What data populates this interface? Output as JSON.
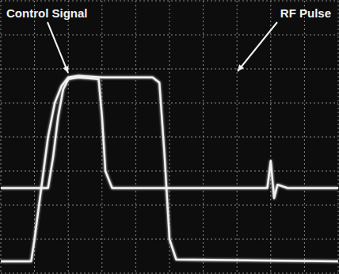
{
  "chart_data": {
    "type": "line",
    "xlim": [
      0,
      10
    ],
    "ylim": [
      0,
      8
    ],
    "xticks": [
      0,
      1,
      2,
      3,
      4,
      5,
      6,
      7,
      8,
      9,
      10
    ],
    "yticks": [
      0,
      1,
      2,
      3,
      4,
      5,
      6,
      7,
      8
    ],
    "grid": true,
    "tick_labels": false,
    "series": [
      {
        "name": "Control Signal",
        "color": "#f2f2f2",
        "line_style": "solid",
        "x": [
          0,
          1.4,
          1.55,
          1.7,
          1.85,
          2.0,
          2.3,
          2.9,
          3.0,
          3.1,
          3.3,
          5.0,
          7.9,
          8.0,
          8.1,
          8.2,
          8.5,
          10
        ],
        "values": [
          2.5,
          2.5,
          3.4,
          4.6,
          5.4,
          5.7,
          5.75,
          5.7,
          4.6,
          3.0,
          2.5,
          2.5,
          2.5,
          3.3,
          2.2,
          2.6,
          2.5,
          2.5
        ]
      },
      {
        "name": "RF Pulse",
        "color": "#f2f2f2",
        "line_style": "solid",
        "x": [
          0,
          0.9,
          1.0,
          1.2,
          1.4,
          1.6,
          1.8,
          2.0,
          2.3,
          3.0,
          4.0,
          4.5,
          4.7,
          4.85,
          5.0,
          5.2,
          10
        ],
        "values": [
          0.35,
          0.35,
          1.0,
          2.5,
          4.0,
          5.0,
          5.5,
          5.75,
          5.8,
          5.75,
          5.75,
          5.75,
          5.6,
          3.5,
          1.0,
          0.4,
          0.35
        ]
      }
    ]
  }
}
